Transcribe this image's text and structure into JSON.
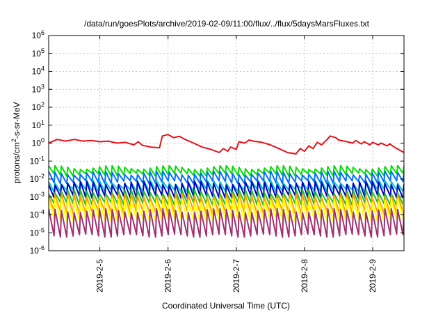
{
  "chart_data": {
    "type": "line",
    "title": "/data/run/goesPlots/archive/2019-02-09/11:00/flux/../flux/5daysMarsFluxes.txt",
    "xlabel": "Coordinated Universal Time (UTC)",
    "ylabel": "protons/cm2-s-sr-MeV",
    "ylabel_parts": {
      "pre": "protons/cm",
      "sup": "2",
      "post": "-s-sr-MeV"
    },
    "x_scale": "time",
    "x_range": [
      "2019-02-04T06:00",
      "2019-02-09T11:00"
    ],
    "x_ticks": [
      {
        "label": "2019-2-5",
        "t": "2019-02-05T00:00"
      },
      {
        "label": "2019-2-6",
        "t": "2019-02-06T00:00"
      },
      {
        "label": "2019-2-7",
        "t": "2019-02-07T00:00"
      },
      {
        "label": "2019-2-8",
        "t": "2019-02-08T00:00"
      },
      {
        "label": "2019-2-9",
        "t": "2019-02-09T00:00"
      }
    ],
    "y_scale": "log",
    "ylim": [
      1e-06,
      1000000.0
    ],
    "y_ticks": [
      {
        "base": "10",
        "exp": "-6",
        "v": 1e-06
      },
      {
        "base": "10",
        "exp": "-5",
        "v": 1e-05
      },
      {
        "base": "10",
        "exp": "-4",
        "v": 0.0001
      },
      {
        "base": "10",
        "exp": "-3",
        "v": 0.001
      },
      {
        "base": "10",
        "exp": "-2",
        "v": 0.01
      },
      {
        "base": "10",
        "exp": "-1",
        "v": 0.1
      },
      {
        "base": "10",
        "exp": "0",
        "v": 1
      },
      {
        "base": "10",
        "exp": "1",
        "v": 10
      },
      {
        "base": "10",
        "exp": "2",
        "v": 100
      },
      {
        "base": "10",
        "exp": "3",
        "v": 1000
      },
      {
        "base": "10",
        "exp": "4",
        "v": 10000
      },
      {
        "base": "10",
        "exp": "5",
        "v": 100000
      },
      {
        "base": "10",
        "exp": "6",
        "v": 1000000
      }
    ],
    "grid": true,
    "series": [
      {
        "color": "#e8101a",
        "values": [
          [
            "2019-02-04T06:00",
            1.0
          ],
          [
            "2019-02-04T09:00",
            1.6
          ],
          [
            "2019-02-04T12:00",
            1.3
          ],
          [
            "2019-02-04T15:00",
            1.6
          ],
          [
            "2019-02-04T18:00",
            1.3
          ],
          [
            "2019-02-04T21:00",
            1.4
          ],
          [
            "2019-02-05T00:00",
            1.2
          ],
          [
            "2019-02-05T03:00",
            1.3
          ],
          [
            "2019-02-05T06:00",
            1.0
          ],
          [
            "2019-02-05T09:00",
            1.1
          ],
          [
            "2019-02-05T12:00",
            0.8
          ],
          [
            "2019-02-05T13:30",
            1.2
          ],
          [
            "2019-02-05T15:00",
            0.75
          ],
          [
            "2019-02-05T18:00",
            0.6
          ],
          [
            "2019-02-05T21:00",
            0.55
          ],
          [
            "2019-02-05T22:00",
            2.5
          ],
          [
            "2019-02-06T00:00",
            3.0
          ],
          [
            "2019-02-06T02:00",
            2.0
          ],
          [
            "2019-02-06T04:00",
            2.4
          ],
          [
            "2019-02-06T06:00",
            1.6
          ],
          [
            "2019-02-06T09:00",
            1.0
          ],
          [
            "2019-02-06T12:00",
            0.6
          ],
          [
            "2019-02-06T15:00",
            0.45
          ],
          [
            "2019-02-06T18:00",
            0.3
          ],
          [
            "2019-02-06T19:30",
            0.5
          ],
          [
            "2019-02-06T21:00",
            0.35
          ],
          [
            "2019-02-06T22:00",
            0.6
          ],
          [
            "2019-02-07T00:00",
            0.45
          ],
          [
            "2019-02-07T01:00",
            1.2
          ],
          [
            "2019-02-07T03:00",
            1.0
          ],
          [
            "2019-02-07T04:30",
            1.5
          ],
          [
            "2019-02-07T06:00",
            1.3
          ],
          [
            "2019-02-07T09:00",
            1.1
          ],
          [
            "2019-02-07T12:00",
            0.8
          ],
          [
            "2019-02-07T15:00",
            0.5
          ],
          [
            "2019-02-07T18:00",
            0.3
          ],
          [
            "2019-02-07T21:00",
            0.25
          ],
          [
            "2019-02-07T22:30",
            0.5
          ],
          [
            "2019-02-08T00:00",
            0.35
          ],
          [
            "2019-02-08T01:30",
            0.7
          ],
          [
            "2019-02-08T03:00",
            0.5
          ],
          [
            "2019-02-08T04:30",
            1.1
          ],
          [
            "2019-02-08T06:00",
            0.8
          ],
          [
            "2019-02-08T08:00",
            1.6
          ],
          [
            "2019-02-08T09:00",
            2.5
          ],
          [
            "2019-02-08T11:00",
            2.0
          ],
          [
            "2019-02-08T12:00",
            1.5
          ],
          [
            "2019-02-08T15:00",
            1.2
          ],
          [
            "2019-02-08T17:00",
            1.0
          ],
          [
            "2019-02-08T18:00",
            1.4
          ],
          [
            "2019-02-08T20:00",
            0.9
          ],
          [
            "2019-02-08T21:00",
            1.2
          ],
          [
            "2019-02-08T23:00",
            0.8
          ],
          [
            "2019-02-09T00:00",
            1.1
          ],
          [
            "2019-02-09T02:00",
            0.8
          ],
          [
            "2019-02-09T03:00",
            1.0
          ],
          [
            "2019-02-09T05:00",
            0.7
          ],
          [
            "2019-02-09T06:00",
            0.9
          ],
          [
            "2019-02-09T08:00",
            0.55
          ],
          [
            "2019-02-09T11:00",
            0.3
          ]
        ]
      },
      {
        "color": "#00e000",
        "base": 0.028,
        "amp": 1.6
      },
      {
        "color": "#0070ff",
        "base": 0.012,
        "amp": 1.8
      },
      {
        "color": "#00c8c8",
        "base": 0.004,
        "amp": 1.7
      },
      {
        "color": "#0000c8",
        "base": 0.0025,
        "amp": 2.4
      },
      {
        "color": "#20c020",
        "base": 0.0009,
        "amp": 2.2
      },
      {
        "color": "#ffa000",
        "base": 0.0004,
        "amp": 3.0
      },
      {
        "color": "#ffff00",
        "base": 0.00018,
        "amp": 3.5
      },
      {
        "color": "#a03070",
        "base": 3.5e-05,
        "amp": 5.0
      }
    ]
  }
}
